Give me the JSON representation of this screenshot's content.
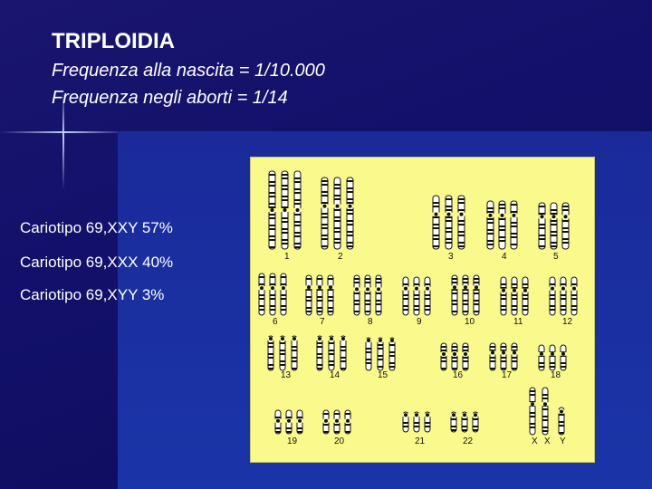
{
  "slide": {
    "title": "TRIPLOIDIA",
    "subtitle_1": "Frequenza alla nascita = 1/10.000",
    "subtitle_2": "Frequenza negli aborti = 1/14"
  },
  "bullets": [
    "Cariotipo 69,XXY 57%",
    "Cariotipo 69,XXX 40%",
    "Cariotipo 69,XYY 3%"
  ],
  "karyotype": {
    "row1": [
      "1",
      "2",
      "3",
      "4",
      "5"
    ],
    "row2": [
      "6",
      "7",
      "8",
      "9",
      "10",
      "11",
      "12"
    ],
    "row3": [
      "13",
      "14",
      "15",
      "16",
      "17",
      "18"
    ],
    "row4": [
      "19",
      "20",
      "21",
      "22",
      "X",
      "X",
      "Y"
    ]
  },
  "colors": {
    "background": "#12106a",
    "panel": "#fafa8c",
    "text": "#ffffff"
  }
}
